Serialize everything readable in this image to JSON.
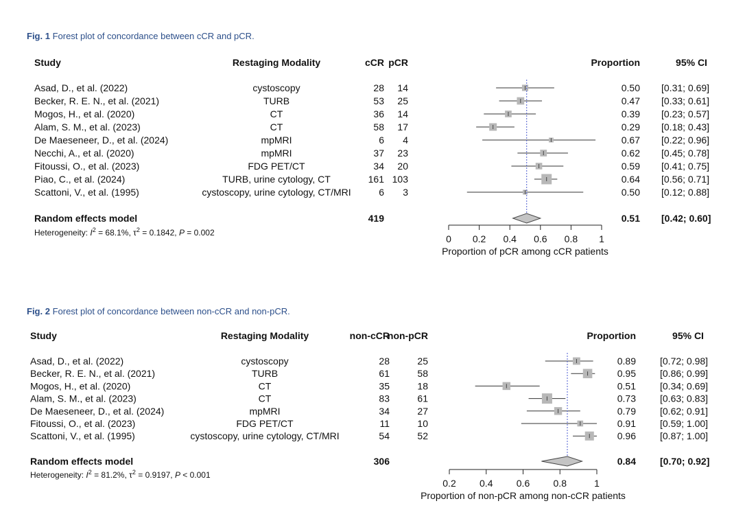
{
  "chart_data": [
    {
      "type": "forest",
      "figure_label": "Fig. 1",
      "caption": "Forest plot of concordance between cCR and pCR.",
      "headers": {
        "study": "Study",
        "modality": "Restaging Modality",
        "events_total": "cCR",
        "events": "pCR",
        "proportion": "Proportion",
        "ci": "95% CI"
      },
      "studies": [
        {
          "study": "Asad, D., et al. (2022)",
          "modality": "cystoscopy",
          "total": 28,
          "events": 14,
          "proportion_text": "0.50",
          "ci_text": "[0.31; 0.69]",
          "est": 0.5,
          "lo": 0.31,
          "hi": 0.69
        },
        {
          "study": "Becker, R. E. N., et al. (2021)",
          "modality": "TURB",
          "total": 53,
          "events": 25,
          "proportion_text": "0.47",
          "ci_text": "[0.33; 0.61]",
          "est": 0.47,
          "lo": 0.33,
          "hi": 0.61
        },
        {
          "study": "Mogos, H., et al. (2020)",
          "modality": "CT",
          "total": 36,
          "events": 14,
          "proportion_text": "0.39",
          "ci_text": "[0.23; 0.57]",
          "est": 0.39,
          "lo": 0.23,
          "hi": 0.57
        },
        {
          "study": "Alam, S. M., et al. (2023)",
          "modality": "CT",
          "total": 58,
          "events": 17,
          "proportion_text": "0.29",
          "ci_text": "[0.18; 0.43]",
          "est": 0.29,
          "lo": 0.18,
          "hi": 0.43
        },
        {
          "study": "De Maeseneer, D., et al. (2024)",
          "modality": "mpMRI",
          "total": 6,
          "events": 4,
          "proportion_text": "0.67",
          "ci_text": "[0.22; 0.96]",
          "est": 0.67,
          "lo": 0.22,
          "hi": 0.96
        },
        {
          "study": "Necchi, A., et al. (2020)",
          "modality": "mpMRI",
          "total": 37,
          "events": 23,
          "proportion_text": "0.62",
          "ci_text": "[0.45; 0.78]",
          "est": 0.62,
          "lo": 0.45,
          "hi": 0.78
        },
        {
          "study": "Fitoussi, O., et al. (2023)",
          "modality": "FDG PET/CT",
          "total": 34,
          "events": 20,
          "proportion_text": "0.59",
          "ci_text": "[0.41; 0.75]",
          "est": 0.59,
          "lo": 0.41,
          "hi": 0.75
        },
        {
          "study": "Piao, C., et al. (2024)",
          "modality": "TURB, urine cytology, CT",
          "total": 161,
          "events": 103,
          "proportion_text": "0.64",
          "ci_text": "[0.56; 0.71]",
          "est": 0.64,
          "lo": 0.56,
          "hi": 0.71
        },
        {
          "study": "Scattoni, V., et al. (1995)",
          "modality": "cystoscopy, urine cytology, CT/MRI",
          "total": 6,
          "events": 3,
          "proportion_text": "0.50",
          "ci_text": "[0.12; 0.88]",
          "est": 0.5,
          "lo": 0.12,
          "hi": 0.88
        }
      ],
      "pooled": {
        "label": "Random effects model",
        "total": 419,
        "proportion_text": "0.51",
        "ci_text": "[0.42; 0.60]",
        "est": 0.51,
        "lo": 0.42,
        "hi": 0.6
      },
      "heterogeneity": {
        "prefix": "Heterogeneity: ",
        "i2": " = 68.1%, ",
        "tau2": " = 0.1842, ",
        "p": " = 0.002"
      },
      "xaxis": {
        "ticks": [
          0,
          0.2,
          0.4,
          0.6,
          0.8,
          1
        ],
        "tick_labels": [
          "0",
          "0.2",
          "0.4",
          "0.6",
          "0.8",
          "1"
        ],
        "xlim": [
          0,
          1
        ],
        "label": "Proportion of pCR among cCR patients"
      }
    },
    {
      "type": "forest",
      "figure_label": "Fig. 2",
      "caption": "Forest plot of concordance between non-cCR and non-pCR.",
      "headers": {
        "study": "Study",
        "modality": "Restaging Modality",
        "events_total": "non-cCR",
        "events": "non-pCR",
        "proportion": "Proportion",
        "ci": "95% CI"
      },
      "studies": [
        {
          "study": "Asad, D., et al. (2022)",
          "modality": "cystoscopy",
          "total": 28,
          "events": 25,
          "proportion_text": "0.89",
          "ci_text": "[0.72; 0.98]",
          "est": 0.89,
          "lo": 0.72,
          "hi": 0.98
        },
        {
          "study": "Becker, R. E. N., et al. (2021)",
          "modality": "TURB",
          "total": 61,
          "events": 58,
          "proportion_text": "0.95",
          "ci_text": "[0.86; 0.99]",
          "est": 0.95,
          "lo": 0.86,
          "hi": 0.99
        },
        {
          "study": "Mogos, H., et al. (2020)",
          "modality": "CT",
          "total": 35,
          "events": 18,
          "proportion_text": "0.51",
          "ci_text": "[0.34; 0.69]",
          "est": 0.51,
          "lo": 0.34,
          "hi": 0.69
        },
        {
          "study": "Alam, S. M., et al. (2023)",
          "modality": "CT",
          "total": 83,
          "events": 61,
          "proportion_text": "0.73",
          "ci_text": "[0.63; 0.83]",
          "est": 0.73,
          "lo": 0.63,
          "hi": 0.83
        },
        {
          "study": "De Maeseneer, D., et al. (2024)",
          "modality": "mpMRI",
          "total": 34,
          "events": 27,
          "proportion_text": "0.79",
          "ci_text": "[0.62; 0.91]",
          "est": 0.79,
          "lo": 0.62,
          "hi": 0.91
        },
        {
          "study": "Fitoussi, O., et al. (2023)",
          "modality": "FDG PET/CT",
          "total": 11,
          "events": 10,
          "proportion_text": "0.91",
          "ci_text": "[0.59; 1.00]",
          "est": 0.91,
          "lo": 0.59,
          "hi": 1.0
        },
        {
          "study": "Scattoni, V., et al. (1995)",
          "modality": "cystoscopy, urine cytology, CT/MRI",
          "total": 54,
          "events": 52,
          "proportion_text": "0.96",
          "ci_text": "[0.87; 1.00]",
          "est": 0.96,
          "lo": 0.87,
          "hi": 1.0
        }
      ],
      "pooled": {
        "label": "Random effects model",
        "total": 306,
        "proportion_text": "0.84",
        "ci_text": "[0.70; 0.92]",
        "est": 0.84,
        "lo": 0.7,
        "hi": 0.92
      },
      "heterogeneity": {
        "prefix": "Heterogeneity: ",
        "i2": " = 81.2%, ",
        "tau2": " = 0.9197, ",
        "p": " < 0.001"
      },
      "xaxis": {
        "ticks": [
          0.2,
          0.4,
          0.6,
          0.8,
          1
        ],
        "tick_labels": [
          "0.2",
          "0.4",
          "0.6",
          "0.8",
          "1"
        ],
        "xlim": [
          0.2,
          1
        ],
        "label": "Proportion of non-pCR among non-cCR patients"
      }
    }
  ]
}
